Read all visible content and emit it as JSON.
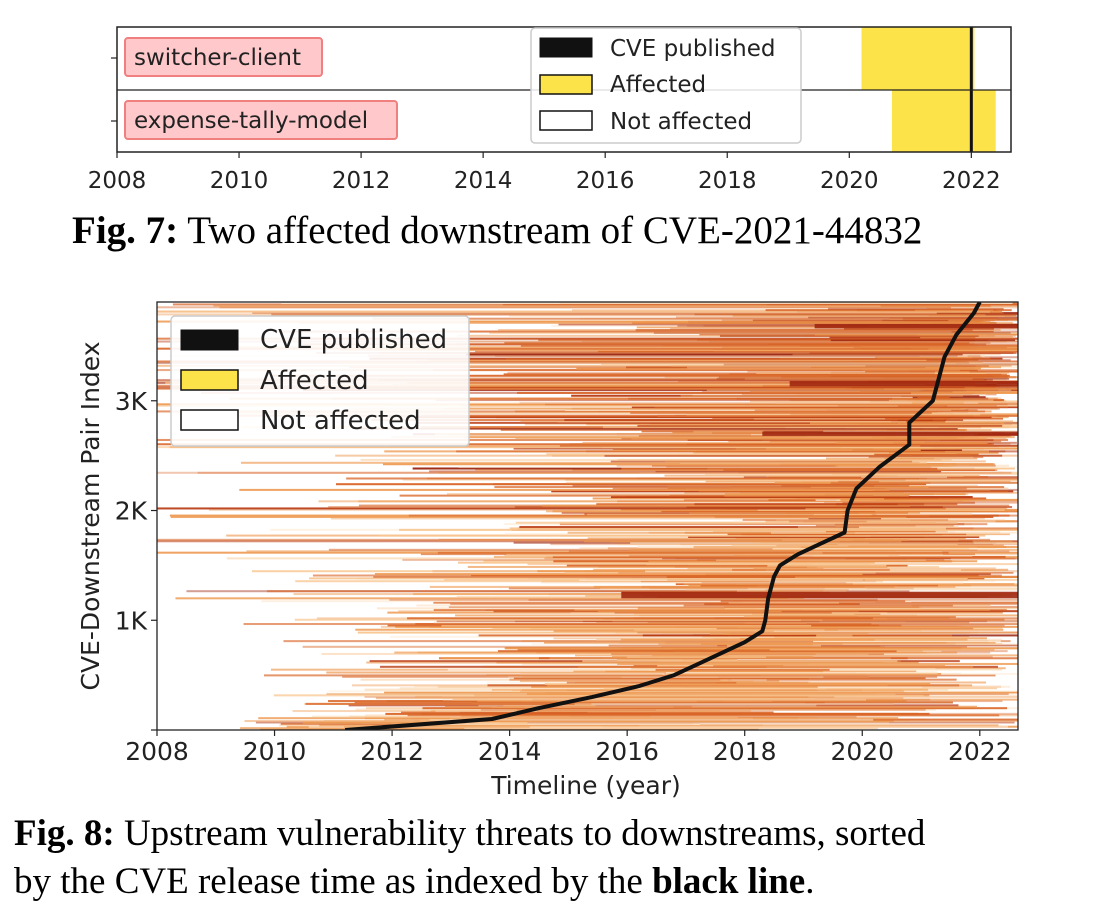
{
  "figure7": {
    "caption_prefix": "Fig. 7:",
    "caption_text": " Two affected downstream of CVE-2021-44832",
    "chart_data": {
      "type": "bar",
      "orientation": "horizontal-timeline",
      "xlim": [
        2008,
        2022.65
      ],
      "xticks": [
        "2008",
        "2010",
        "2012",
        "2014",
        "2016",
        "2018",
        "2020",
        "2022"
      ],
      "cve_published": 2022.0,
      "legend": [
        "CVE published",
        "Affected",
        "Not affected"
      ],
      "legend_position": "top-right",
      "rows": [
        {
          "label": "switcher-client",
          "affected_start": 2020.2,
          "affected_end": 2022.05
        },
        {
          "label": "expense-tally-model",
          "affected_start": 2020.7,
          "affected_end": 2022.4
        }
      ]
    }
  },
  "figure8": {
    "caption_prefix": "Fig. 8:",
    "caption_line1": " Upstream vulnerability threats to downstreams, sorted",
    "caption_line2_pre": "by the CVE release time as indexed by the ",
    "caption_bold": "black line",
    "caption_line2_post": ".",
    "chart_data": {
      "type": "heatmap",
      "xlabel": "Timeline (year)",
      "ylabel": "CVE-Downstream Pair Index",
      "xlim": [
        2008,
        2022.65
      ],
      "ylim": [
        0,
        3900
      ],
      "xticks": [
        "2008",
        "2010",
        "2012",
        "2014",
        "2016",
        "2018",
        "2020",
        "2022"
      ],
      "yticks": [
        {
          "value": 1000,
          "label": "1K"
        },
        {
          "value": 2000,
          "label": "2K"
        },
        {
          "value": 3000,
          "label": "3K"
        }
      ],
      "legend": [
        "CVE published",
        "Affected",
        "Not affected"
      ],
      "legend_position": "top-left",
      "cve_publish_curve": {
        "index": [
          0,
          100,
          200,
          300,
          400,
          500,
          600,
          700,
          800,
          900,
          1000,
          1200,
          1400,
          1500,
          1600,
          1700,
          1800,
          2000,
          2200,
          2400,
          2600,
          2800,
          3000,
          3200,
          3400,
          3600,
          3800,
          3900
        ],
        "year": [
          2011.2,
          2013.7,
          2014.5,
          2015.4,
          2016.2,
          2016.8,
          2017.2,
          2017.6,
          2018.0,
          2018.3,
          2018.35,
          2018.4,
          2018.5,
          2018.6,
          2018.9,
          2019.3,
          2019.7,
          2019.75,
          2019.9,
          2020.3,
          2020.8,
          2020.8,
          2021.2,
          2021.3,
          2021.4,
          2021.6,
          2021.9,
          2022.0
        ]
      }
    }
  },
  "colors": {
    "cve_published": "#111111",
    "affected": "#fde34a",
    "not_affected": "#ffffff",
    "heat_low": "#fbe0c0",
    "heat_mid": "#e07a2c",
    "heat_high": "#a0260e",
    "label_box_fill": "#ffc9cc",
    "label_box_border": "#f08080"
  }
}
